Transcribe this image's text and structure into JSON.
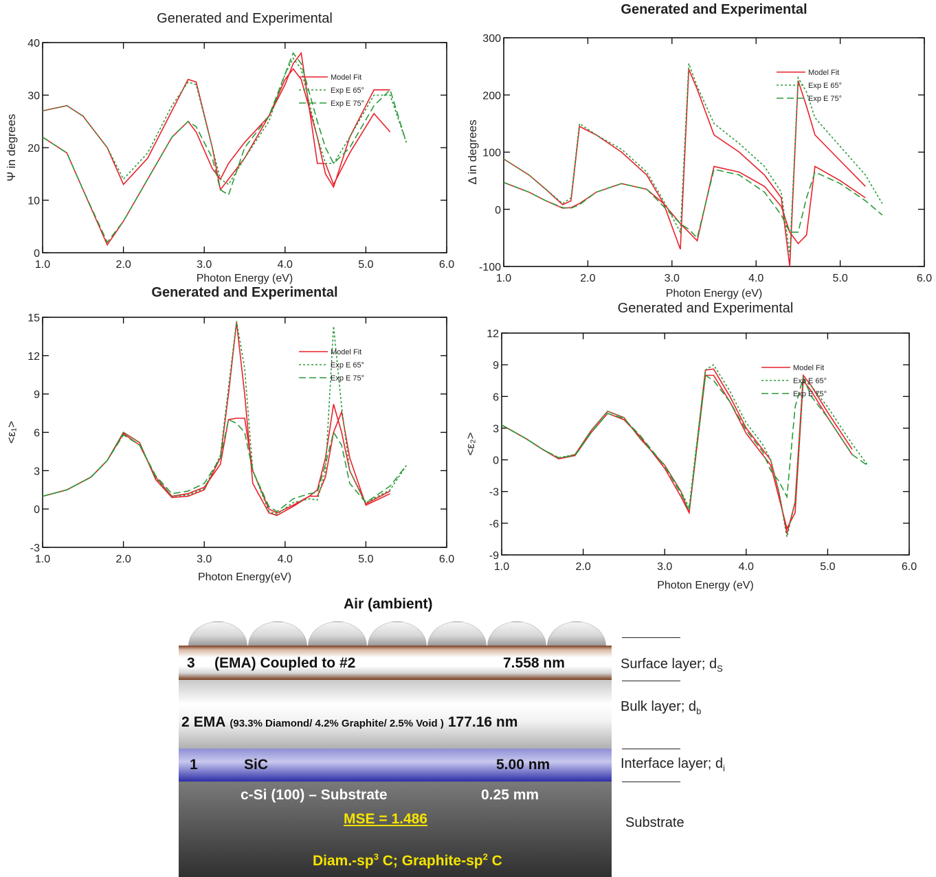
{
  "chart_data": [
    {
      "type": "line",
      "title": "Generated and Experimental",
      "title_bold": false,
      "xlabel": "Photon Energy (eV)",
      "ylabel": "Ψ in degrees",
      "x": [
        1.0,
        1.3,
        1.5,
        1.8,
        2.0,
        2.3,
        2.6,
        2.8,
        2.9,
        3.1,
        3.2,
        3.3,
        3.5,
        3.8,
        4.0,
        4.1,
        4.2,
        4.4,
        4.5,
        4.6,
        4.8,
        5.1,
        5.3,
        5.5
      ],
      "series": [
        {
          "name": "Model Fit",
          "color": "#e8202a",
          "dash": "none",
          "values": [
            [
              27,
              28,
              26,
              20,
              13,
              18,
              27,
              33,
              32.5,
              20,
              12,
              14,
              18,
              26,
              33,
              35,
              33,
              22,
              15,
              12.5,
              22,
              31,
              31,
              null
            ],
            [
              22,
              19,
              12,
              1.5,
              6,
              14,
              22,
              25,
              23,
              16,
              14,
              17,
              21,
              26,
              32,
              36,
              38,
              17,
              17,
              13,
              19,
              26.5,
              23,
              null
            ]
          ]
        },
        {
          "name": "Exp E 65°",
          "color": "#2a9a3a",
          "dash": "3 3",
          "values": [
            27,
            28,
            26,
            20,
            14,
            19,
            28,
            32.5,
            32,
            20,
            14,
            13,
            18,
            25,
            34,
            37,
            35,
            22,
            17,
            17,
            22,
            30,
            30,
            21
          ]
        },
        {
          "name": "Exp E 75°",
          "color": "#2a9a3a",
          "dash": "10 5",
          "values": [
            22,
            19,
            12,
            2,
            6,
            14,
            22,
            25,
            24,
            18,
            12,
            11,
            20,
            26,
            34,
            38,
            36,
            25,
            20,
            17,
            20,
            28,
            31,
            21
          ]
        }
      ],
      "xlim": [
        1,
        6
      ],
      "ylim": [
        0,
        40
      ],
      "xticks": [
        {
          "value": 1,
          "label": "1.0"
        },
        {
          "value": 2,
          "label": "2.0"
        },
        {
          "value": 3,
          "label": "3.0"
        },
        {
          "value": 4,
          "label": "4.0"
        },
        {
          "value": 5,
          "label": "5.0"
        },
        {
          "value": 6,
          "label": "6.0"
        }
      ],
      "yticks": [
        0,
        10,
        20,
        30,
        40
      ],
      "legend": "upper right"
    },
    {
      "type": "line",
      "title": "Generated and Experimental",
      "title_bold": true,
      "xlabel": "Photon Energy (eV)",
      "ylabel": "Δ in degrees",
      "x": [
        1.0,
        1.3,
        1.5,
        1.7,
        1.8,
        1.9,
        2.1,
        2.4,
        2.7,
        2.9,
        3.1,
        3.2,
        3.3,
        3.5,
        3.8,
        4.1,
        4.3,
        4.4,
        4.5,
        4.6,
        4.7,
        5.0,
        5.3,
        5.5
      ],
      "series": [
        {
          "name": "Model Fit",
          "color": "#e8202a",
          "dash": "none",
          "values": [
            [
              88,
              60,
              35,
              8,
              15,
              145,
              130,
              100,
              60,
              10,
              -70,
              245,
              210,
              130,
              100,
              60,
              20,
              -100,
              225,
              180,
              130,
              85,
              40,
              null
            ],
            [
              47,
              30,
              15,
              2,
              3,
              10,
              30,
              45,
              35,
              10,
              -25,
              -40,
              -55,
              75,
              65,
              40,
              5,
              -40,
              -60,
              -45,
              75,
              50,
              20,
              null
            ]
          ]
        },
        {
          "name": "Exp E 65°",
          "color": "#2a9a3a",
          "dash": "3 3",
          "values": [
            88,
            60,
            35,
            10,
            20,
            150,
            130,
            105,
            65,
            15,
            -40,
            255,
            215,
            150,
            115,
            75,
            30,
            -80,
            230,
            205,
            160,
            110,
            60,
            10
          ]
        },
        {
          "name": "Exp E 75°",
          "color": "#2a9a3a",
          "dash": "10 5",
          "values": [
            47,
            30,
            15,
            3,
            2,
            8,
            30,
            45,
            35,
            5,
            -25,
            -35,
            -50,
            70,
            60,
            30,
            -10,
            -40,
            -40,
            20,
            65,
            45,
            15,
            -10
          ]
        }
      ],
      "xlim": [
        1,
        6
      ],
      "ylim": [
        -100,
        300
      ],
      "xticks": [
        {
          "value": 1,
          "label": "1.0"
        },
        {
          "value": 2,
          "label": "2.0"
        },
        {
          "value": 3,
          "label": "3.0"
        },
        {
          "value": 4,
          "label": "4.0"
        },
        {
          "value": 5,
          "label": "5.0"
        },
        {
          "value": 6,
          "label": "6.0"
        }
      ],
      "yticks": [
        -100,
        0,
        100,
        200,
        300
      ],
      "legend": "upper right"
    },
    {
      "type": "line",
      "title": "Generated and Experimental",
      "title_bold": true,
      "xlabel": "Photon Energy(eV)",
      "ylabel": "<ε₁>",
      "x": [
        1.0,
        1.3,
        1.6,
        1.8,
        2.0,
        2.2,
        2.4,
        2.6,
        2.8,
        3.0,
        3.2,
        3.3,
        3.4,
        3.5,
        3.6,
        3.8,
        3.9,
        4.1,
        4.3,
        4.4,
        4.5,
        4.6,
        4.7,
        4.8,
        5.0,
        5.3,
        5.5
      ],
      "series": [
        {
          "name": "Model Fit",
          "color": "#e8202a",
          "dash": "none",
          "values": [
            [
              1.0,
              1.5,
              2.5,
              3.8,
              5.9,
              5.0,
              2.5,
              1.0,
              1.2,
              1.7,
              3.5,
              7.0,
              7.1,
              7.1,
              3.0,
              0.0,
              -0.3,
              0.3,
              1.0,
              1.5,
              4.0,
              8.2,
              6.0,
              3.0,
              0.4,
              1.4,
              null
            ],
            [
              1.0,
              1.5,
              2.5,
              3.8,
              6.0,
              5.2,
              2.3,
              0.9,
              1.0,
              1.5,
              4.0,
              9.0,
              14.6,
              9.0,
              2.0,
              -0.3,
              -0.5,
              0.2,
              1.0,
              1.0,
              2.5,
              6.0,
              7.6,
              4.0,
              0.3,
              1.2,
              null
            ]
          ]
        },
        {
          "name": "Exp E 65°",
          "color": "#2a9a3a",
          "dash": "3 3",
          "values": [
            1.0,
            1.5,
            2.5,
            3.8,
            6.0,
            5.2,
            2.4,
            1.0,
            1.1,
            1.6,
            4.2,
            9.5,
            14.7,
            11,
            3,
            -0.2,
            -0.4,
            0.5,
            0.8,
            0.7,
            3,
            14.3,
            8,
            3,
            0.5,
            1.5,
            3.4
          ]
        },
        {
          "name": "Exp E 75°",
          "color": "#2a9a3a",
          "dash": "10 5",
          "values": [
            1.0,
            1.5,
            2.5,
            3.8,
            5.8,
            5.0,
            2.6,
            1.2,
            1.4,
            2.0,
            4.0,
            7.0,
            6.7,
            6.0,
            3.0,
            0.2,
            -0.2,
            0.8,
            1.2,
            1.3,
            3.5,
            6.0,
            5.0,
            2.0,
            0.5,
            1.8,
            3.4
          ]
        }
      ],
      "xlim": [
        1,
        6
      ],
      "ylim": [
        -3,
        15
      ],
      "xticks": [
        {
          "value": 1,
          "label": "1.0"
        },
        {
          "value": 2,
          "label": "2.0"
        },
        {
          "value": 3,
          "label": "3.0"
        },
        {
          "value": 4,
          "label": "4.0"
        },
        {
          "value": 5,
          "label": "5.0"
        },
        {
          "value": 6,
          "label": "6.0"
        }
      ],
      "yticks": [
        -3,
        0,
        3,
        6,
        9,
        12,
        15
      ],
      "legend": "upper right"
    },
    {
      "type": "line",
      "title": "Generated and Experimental",
      "title_bold": false,
      "xlabel": "Photon Energy (eV)",
      "ylabel": "<ε₂>",
      "x": [
        1.0,
        1.3,
        1.5,
        1.7,
        1.9,
        2.1,
        2.3,
        2.5,
        2.7,
        3.0,
        3.2,
        3.3,
        3.5,
        3.6,
        3.8,
        4.0,
        4.2,
        4.3,
        4.4,
        4.5,
        4.6,
        4.7,
        4.8,
        5.0,
        5.3,
        5.5
      ],
      "series": [
        {
          "name": "Model Fit",
          "color": "#e8202a",
          "dash": "none",
          "values": [
            [
              3.3,
              2.0,
              1.0,
              0.1,
              0.5,
              2.8,
              4.6,
              4.0,
              2.0,
              -0.5,
              -3,
              -5,
              8.5,
              8.6,
              6,
              3,
              1,
              0,
              -3,
              -7,
              -4,
              8,
              7,
              4.5,
              1,
              null
            ],
            [
              3.3,
              2.0,
              1.0,
              0.1,
              0.4,
              2.6,
              4.4,
              3.8,
              2.2,
              -0.8,
              -3.5,
              -5,
              8,
              8,
              5.5,
              2.5,
              0.5,
              -0.5,
              -3.5,
              -6.5,
              -5,
              7.5,
              6.5,
              4,
              0.5,
              null
            ]
          ]
        },
        {
          "name": "Exp E 65°",
          "color": "#2a9a3a",
          "dash": "3 3",
          "values": [
            3.3,
            2.0,
            1.0,
            0.2,
            0.5,
            2.8,
            4.6,
            4.0,
            2.0,
            -0.5,
            -3,
            -4.5,
            8.5,
            9.0,
            6.5,
            3.5,
            1.5,
            0,
            -3,
            -7.3,
            -4,
            7.5,
            7,
            5,
            1.5,
            -0.6
          ]
        },
        {
          "name": "Exp E 75°",
          "color": "#2a9a3a",
          "dash": "10 5",
          "values": [
            3.3,
            2.0,
            1.0,
            0.2,
            0.4,
            2.6,
            4.4,
            3.9,
            2.3,
            -0.6,
            -3.2,
            -4.8,
            8.0,
            7.5,
            5.5,
            2.8,
            0.8,
            -1,
            -2,
            -3.5,
            5,
            7.8,
            6,
            4,
            0.5,
            -0.6
          ]
        }
      ],
      "xlim": [
        1,
        6
      ],
      "ylim": [
        -9,
        12
      ],
      "xticks": [
        {
          "value": 1,
          "label": "1.0"
        },
        {
          "value": 2,
          "label": "2.0"
        },
        {
          "value": 3,
          "label": "3.0"
        },
        {
          "value": 4,
          "label": "4.0"
        },
        {
          "value": 5,
          "label": "5.0"
        },
        {
          "value": 6,
          "label": "6.0"
        }
      ],
      "yticks": [
        -9,
        -6,
        -3,
        0,
        3,
        6,
        9,
        12
      ],
      "legend": "upper right"
    }
  ],
  "diagram": {
    "ambient": "Air (ambient)",
    "layers": [
      {
        "index": "3",
        "name": "(EMA) Coupled to #2",
        "thickness": "7.558 nm",
        "label": "Surface layer; d",
        "label_sub": "S"
      },
      {
        "index": "2",
        "name": "EMA",
        "composition": "(93.3% Diamond/ 4.2% Graphite/ 2.5% Void )",
        "thickness": "177.16 nm",
        "label": "Bulk layer; d",
        "label_sub": "b"
      },
      {
        "index": "1",
        "name": "SiC",
        "thickness": "5.00 nm",
        "label": "Interface layer; d",
        "label_sub": "i"
      }
    ],
    "substrate": {
      "name": "c-Si (100) – Substrate",
      "thickness": "0.25 mm",
      "mse": "MSE = 1.486",
      "label": "Substrate",
      "note": [
        "Diam.-sp",
        "3",
        " C; Graphite-sp",
        "2",
        " C"
      ]
    }
  }
}
